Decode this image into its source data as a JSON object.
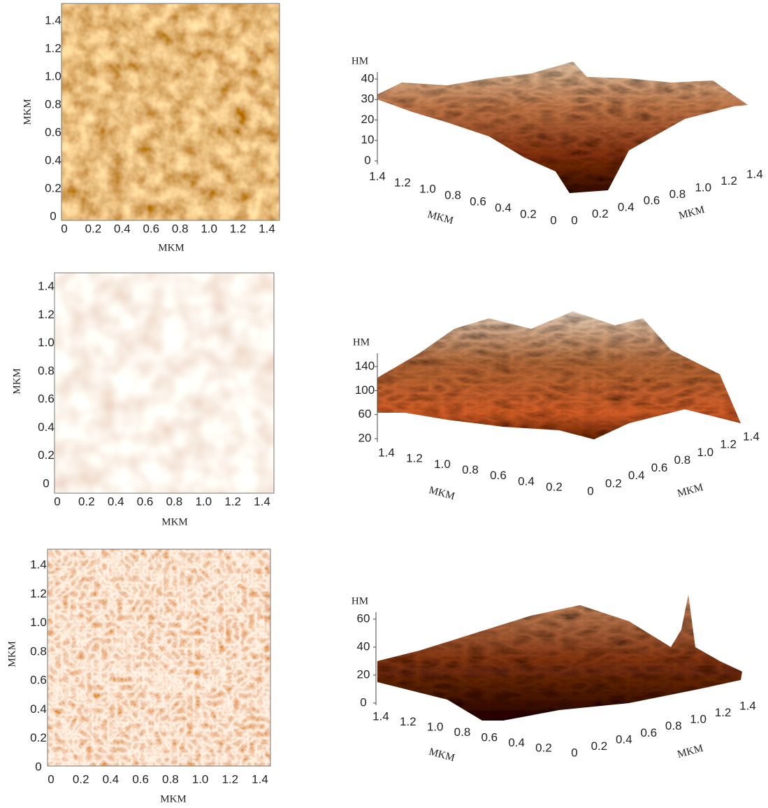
{
  "panels": [
    {
      "map": {
        "xlabel": "MKM",
        "ylabel": "MKM",
        "xticks": [
          "0",
          "0.2",
          "0.4",
          "0.6",
          "0.8",
          "1.0",
          "1.2",
          "1.4"
        ],
        "yticks": [
          "0",
          "0.2",
          "0.4",
          "0.6",
          "0.8",
          "1.0",
          "1.2",
          "1.4"
        ]
      },
      "surface": {
        "zlabel": "HM",
        "zticks": [
          "40",
          "30",
          "20",
          "10",
          "0"
        ],
        "left_ticks": [
          "1.4",
          "1.2",
          "1.0",
          "0.8",
          "0.6",
          "0.4",
          "0.2",
          "0"
        ],
        "right_ticks": [
          "0",
          "0.2",
          "0.4",
          "0.6",
          "0.8",
          "1.0",
          "1.2",
          "1.4"
        ],
        "left_label": "MKM",
        "right_label": "MKM"
      }
    },
    {
      "map": {
        "xlabel": "MKM",
        "ylabel": "MKM",
        "xticks": [
          "0",
          "0.2",
          "0.4",
          "0.6",
          "0.8",
          "1.0",
          "1.2",
          "1.4"
        ],
        "yticks": [
          "0",
          "0.2",
          "0.4",
          "0.6",
          "0.8",
          "1.0",
          "1.2",
          "1.4"
        ]
      },
      "surface": {
        "zlabel": "HM",
        "zticks": [
          "140",
          "100",
          "60",
          "20"
        ],
        "left_ticks": [
          "1.4",
          "1.2",
          "1.0",
          "0.8",
          "0.6",
          "0.4",
          "0.2"
        ],
        "right_ticks": [
          "0",
          "0.2",
          "0.4",
          "0.6",
          "0.8",
          "1.0",
          "1.2",
          "1.4"
        ],
        "left_label": "MKM",
        "right_label": "MKM"
      }
    },
    {
      "map": {
        "xlabel": "MKM",
        "ylabel": "MKM",
        "xticks": [
          "0",
          "0.2",
          "0.4",
          "0.6",
          "0.8",
          "1.0",
          "1.2",
          "1.4"
        ],
        "yticks": [
          "0",
          "0.2",
          "0.4",
          "0.6",
          "0.8",
          "1.0",
          "1.2",
          "1.4"
        ]
      },
      "surface": {
        "zlabel": "HM",
        "zticks": [
          "60",
          "40",
          "20",
          "0"
        ],
        "left_ticks": [
          "1.4",
          "1.2",
          "1.0",
          "0.8",
          "0.6",
          "0.4",
          "0.2"
        ],
        "right_ticks": [
          "0",
          "0.2",
          "0.4",
          "0.6",
          "0.8",
          "1.0",
          "1.2",
          "1.4"
        ],
        "left_label": "MKM",
        "right_label": "MKM"
      }
    }
  ]
}
